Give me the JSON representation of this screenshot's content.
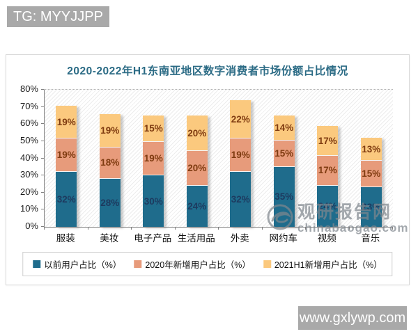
{
  "badges": {
    "tg": "TG: MYYJJPP",
    "site": "www.gxlywp.com"
  },
  "watermark": {
    "name": "观研报告网",
    "url": "chinabaogao.com"
  },
  "chart_data": {
    "type": "bar",
    "stacked": true,
    "title": "2020-2022年H1东南亚地区数字消费者市场份额占比情况",
    "categories": [
      "服装",
      "美妆",
      "电子产品",
      "生活用品",
      "外卖",
      "网约车",
      "视频",
      "音乐"
    ],
    "series": [
      {
        "name": "以前用户占比（%）",
        "color": "#1f6c8c",
        "label_color": "#1d3a5f",
        "values": [
          32,
          28,
          30,
          24,
          32,
          35,
          24,
          23
        ]
      },
      {
        "name": "2020年新增用户占比（%）",
        "color": "#e79b7b",
        "label_color": "#7f3b10",
        "values": [
          19,
          18,
          19,
          20,
          19,
          15,
          17,
          15
        ]
      },
      {
        "name": "2021H1新增用户占比（%）",
        "color": "#fbc97e",
        "label_color": "#7f3b10",
        "values": [
          19,
          19,
          15,
          20,
          22,
          14,
          17,
          13
        ]
      }
    ],
    "ylabel": "",
    "xlabel": "",
    "ylim": [
      0,
      80
    ],
    "ytick_step": 10,
    "ytick_suffix": "%",
    "grid": "top-dotted-only",
    "legend_position": "bottom"
  }
}
